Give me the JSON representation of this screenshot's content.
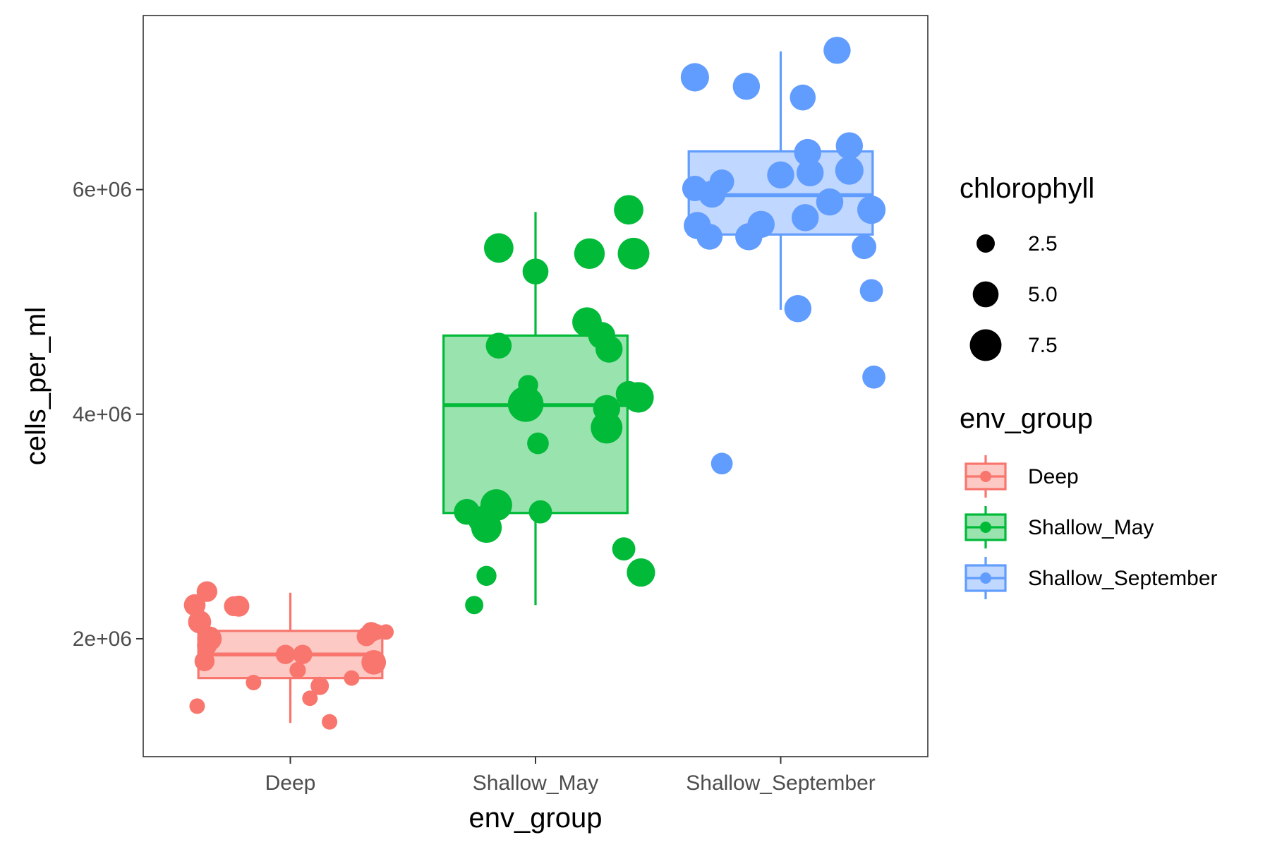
{
  "chart_data": {
    "type": "box",
    "xlabel": "env_group",
    "ylabel": "cells_per_ml",
    "categories": [
      "Deep",
      "Shallow_May",
      "Shallow_September"
    ],
    "y_ticks": [
      {
        "value": 2000000,
        "label": "2e+06"
      },
      {
        "value": 4000000,
        "label": "4e+06"
      },
      {
        "value": 6000000,
        "label": "6e+06"
      }
    ],
    "ylim": [
      950000,
      7550000
    ],
    "grid": false,
    "colors": {
      "Deep": "#F8766D",
      "Shallow_May": "#00BA38",
      "Shallow_September": "#619CFF"
    },
    "fills": {
      "Deep": "#FCC9C5",
      "Shallow_May": "#99E3AF",
      "Shallow_September": "#C0D7FF"
    },
    "boxes": [
      {
        "group": "Deep",
        "whisker_low": 1250000,
        "q1": 1650000,
        "median": 1860000,
        "q3": 2070000,
        "whisker_high": 2410000
      },
      {
        "group": "Shallow_May",
        "whisker_low": 2300000,
        "q1": 3120000,
        "median": 4080000,
        "q3": 4700000,
        "whisker_high": 5800000
      },
      {
        "group": "Shallow_September",
        "whisker_low": 4930000,
        "q1": 5600000,
        "median": 5950000,
        "q3": 6340000,
        "whisker_high": 7230000
      }
    ],
    "points": [
      {
        "group": "Deep",
        "x": 0.61,
        "y": 2300000,
        "chlorophyll": 3.5
      },
      {
        "group": "Deep",
        "x": 0.66,
        "y": 2420000,
        "chlorophyll": 3.2
      },
      {
        "group": "Deep",
        "x": 0.63,
        "y": 2150000,
        "chlorophyll": 4.0
      },
      {
        "group": "Deep",
        "x": 0.77,
        "y": 2290000,
        "chlorophyll": 3.0
      },
      {
        "group": "Deep",
        "x": 0.79,
        "y": 2290000,
        "chlorophyll": 3.3
      },
      {
        "group": "Deep",
        "x": 0.67,
        "y": 2000000,
        "chlorophyll": 4.5
      },
      {
        "group": "Deep",
        "x": 0.66,
        "y": 1940000,
        "chlorophyll": 3.0
      },
      {
        "group": "Deep",
        "x": 0.65,
        "y": 1800000,
        "chlorophyll": 3.0
      },
      {
        "group": "Deep",
        "x": 0.98,
        "y": 1860000,
        "chlorophyll": 2.8
      },
      {
        "group": "Deep",
        "x": 1.05,
        "y": 1860000,
        "chlorophyll": 2.8
      },
      {
        "group": "Deep",
        "x": 1.03,
        "y": 1720000,
        "chlorophyll": 2.0
      },
      {
        "group": "Deep",
        "x": 0.85,
        "y": 1610000,
        "chlorophyll": 1.8
      },
      {
        "group": "Deep",
        "x": 1.12,
        "y": 1580000,
        "chlorophyll": 2.5
      },
      {
        "group": "Deep",
        "x": 1.08,
        "y": 1470000,
        "chlorophyll": 1.8
      },
      {
        "group": "Deep",
        "x": 0.62,
        "y": 1400000,
        "chlorophyll": 1.8
      },
      {
        "group": "Deep",
        "x": 1.16,
        "y": 1260000,
        "chlorophyll": 1.8
      },
      {
        "group": "Deep",
        "x": 1.25,
        "y": 1650000,
        "chlorophyll": 1.8
      },
      {
        "group": "Deep",
        "x": 1.33,
        "y": 2060000,
        "chlorophyll": 3.0
      },
      {
        "group": "Deep",
        "x": 1.35,
        "y": 2060000,
        "chlorophyll": 2.0
      },
      {
        "group": "Deep",
        "x": 1.39,
        "y": 2060000,
        "chlorophyll": 1.8
      },
      {
        "group": "Deep",
        "x": 1.31,
        "y": 2020000,
        "chlorophyll": 2.8
      },
      {
        "group": "Deep",
        "x": 1.34,
        "y": 1790000,
        "chlorophyll": 4.5
      },
      {
        "group": "Shallow_May",
        "x": 2.38,
        "y": 5820000,
        "chlorophyll": 6.5
      },
      {
        "group": "Shallow_May",
        "x": 1.85,
        "y": 5480000,
        "chlorophyll": 6.5
      },
      {
        "group": "Shallow_May",
        "x": 2.22,
        "y": 5430000,
        "chlorophyll": 7.0
      },
      {
        "group": "Shallow_May",
        "x": 2.4,
        "y": 5430000,
        "chlorophyll": 7.5
      },
      {
        "group": "Shallow_May",
        "x": 2.0,
        "y": 5270000,
        "chlorophyll": 5.0
      },
      {
        "group": "Shallow_May",
        "x": 2.21,
        "y": 4820000,
        "chlorophyll": 6.5
      },
      {
        "group": "Shallow_May",
        "x": 2.27,
        "y": 4700000,
        "chlorophyll": 5.5
      },
      {
        "group": "Shallow_May",
        "x": 1.85,
        "y": 4610000,
        "chlorophyll": 5.0
      },
      {
        "group": "Shallow_May",
        "x": 2.3,
        "y": 4580000,
        "chlorophyll": 5.5
      },
      {
        "group": "Shallow_May",
        "x": 1.97,
        "y": 4260000,
        "chlorophyll": 3.0
      },
      {
        "group": "Shallow_May",
        "x": 2.42,
        "y": 4150000,
        "chlorophyll": 7.0
      },
      {
        "group": "Shallow_May",
        "x": 2.38,
        "y": 4180000,
        "chlorophyll": 5.0
      },
      {
        "group": "Shallow_May",
        "x": 1.96,
        "y": 4090000,
        "chlorophyll": 9.5
      },
      {
        "group": "Shallow_May",
        "x": 2.29,
        "y": 4050000,
        "chlorophyll": 5.5
      },
      {
        "group": "Shallow_May",
        "x": 2.29,
        "y": 3880000,
        "chlorophyll": 7.5
      },
      {
        "group": "Shallow_May",
        "x": 2.01,
        "y": 3740000,
        "chlorophyll": 3.5
      },
      {
        "group": "Shallow_May",
        "x": 1.72,
        "y": 3130000,
        "chlorophyll": 5.0
      },
      {
        "group": "Shallow_May",
        "x": 1.78,
        "y": 3060000,
        "chlorophyll": 5.5
      },
      {
        "group": "Shallow_May",
        "x": 1.84,
        "y": 3190000,
        "chlorophyll": 7.5
      },
      {
        "group": "Shallow_May",
        "x": 1.8,
        "y": 2990000,
        "chlorophyll": 7.0
      },
      {
        "group": "Shallow_May",
        "x": 2.02,
        "y": 3130000,
        "chlorophyll": 4.0
      },
      {
        "group": "Shallow_May",
        "x": 2.36,
        "y": 2800000,
        "chlorophyll": 4.0
      },
      {
        "group": "Shallow_May",
        "x": 2.43,
        "y": 2590000,
        "chlorophyll": 6.0
      },
      {
        "group": "Shallow_May",
        "x": 1.8,
        "y": 2560000,
        "chlorophyll": 3.0
      },
      {
        "group": "Shallow_May",
        "x": 1.75,
        "y": 2300000,
        "chlorophyll": 2.5
      },
      {
        "group": "Shallow_September",
        "x": 3.23,
        "y": 7240000,
        "chlorophyll": 5.5
      },
      {
        "group": "Shallow_September",
        "x": 2.65,
        "y": 7000000,
        "chlorophyll": 6.0
      },
      {
        "group": "Shallow_September",
        "x": 2.86,
        "y": 6920000,
        "chlorophyll": 5.5
      },
      {
        "group": "Shallow_September",
        "x": 3.09,
        "y": 6820000,
        "chlorophyll": 5.0
      },
      {
        "group": "Shallow_September",
        "x": 3.28,
        "y": 6390000,
        "chlorophyll": 5.5
      },
      {
        "group": "Shallow_September",
        "x": 3.11,
        "y": 6330000,
        "chlorophyll": 5.5
      },
      {
        "group": "Shallow_September",
        "x": 3.28,
        "y": 6170000,
        "chlorophyll": 6.0
      },
      {
        "group": "Shallow_September",
        "x": 3.12,
        "y": 6150000,
        "chlorophyll": 5.5
      },
      {
        "group": "Shallow_September",
        "x": 3.0,
        "y": 6130000,
        "chlorophyll": 5.5
      },
      {
        "group": "Shallow_September",
        "x": 2.76,
        "y": 6070000,
        "chlorophyll": 4.5
      },
      {
        "group": "Shallow_September",
        "x": 2.65,
        "y": 6010000,
        "chlorophyll": 4.8
      },
      {
        "group": "Shallow_September",
        "x": 2.72,
        "y": 5960000,
        "chlorophyll": 5.5
      },
      {
        "group": "Shallow_September",
        "x": 3.2,
        "y": 5890000,
        "chlorophyll": 5.5
      },
      {
        "group": "Shallow_September",
        "x": 3.37,
        "y": 5820000,
        "chlorophyll": 6.0
      },
      {
        "group": "Shallow_September",
        "x": 3.1,
        "y": 5750000,
        "chlorophyll": 5.5
      },
      {
        "group": "Shallow_September",
        "x": 2.92,
        "y": 5690000,
        "chlorophyll": 5.5
      },
      {
        "group": "Shallow_September",
        "x": 2.66,
        "y": 5680000,
        "chlorophyll": 5.5
      },
      {
        "group": "Shallow_September",
        "x": 2.71,
        "y": 5580000,
        "chlorophyll": 5.0
      },
      {
        "group": "Shallow_September",
        "x": 2.87,
        "y": 5580000,
        "chlorophyll": 5.5
      },
      {
        "group": "Shallow_September",
        "x": 3.34,
        "y": 5490000,
        "chlorophyll": 4.5
      },
      {
        "group": "Shallow_September",
        "x": 3.37,
        "y": 5100000,
        "chlorophyll": 4.0
      },
      {
        "group": "Shallow_September",
        "x": 3.07,
        "y": 4940000,
        "chlorophyll": 5.5
      },
      {
        "group": "Shallow_September",
        "x": 3.38,
        "y": 4330000,
        "chlorophyll": 4.0
      },
      {
        "group": "Shallow_September",
        "x": 2.76,
        "y": 3560000,
        "chlorophyll": 3.5
      }
    ],
    "legends": {
      "size": {
        "title": "chlorophyll",
        "entries": [
          {
            "label": "2.5",
            "value": 2.5
          },
          {
            "label": "5.0",
            "value": 5.0
          },
          {
            "label": "7.5",
            "value": 7.5
          }
        ]
      },
      "color": {
        "title": "env_group",
        "entries": [
          "Deep",
          "Shallow_May",
          "Shallow_September"
        ]
      },
      "position": "right"
    }
  }
}
